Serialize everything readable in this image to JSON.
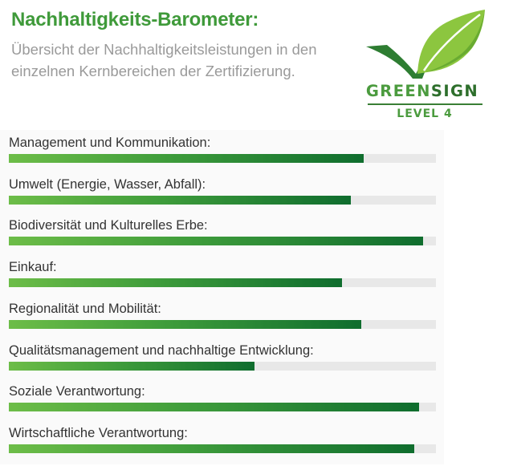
{
  "header": {
    "title": "Nachhaltigkeits-Barometer:",
    "subtitle": "Übersicht der Nachhaltigkeitsleistungen in den einzelnen Kernbereichen der Zertifizierung."
  },
  "logo": {
    "word_green": "GREEN",
    "word_sign": "SIGN",
    "level": "LEVEL 4",
    "colors": {
      "leaf_light": "#8cc63f",
      "leaf_dark": "#2e7d32",
      "text": "#4b9b3e"
    }
  },
  "chart_data": {
    "type": "bar",
    "orientation": "horizontal",
    "xlim": [
      0,
      100
    ],
    "unit": "percent",
    "categories": [
      "Management und Kommunikation:",
      "Umwelt (Energie, Wasser, Abfall):",
      "Biodiversität und Kulturelles Erbe:",
      "Einkauf:",
      "Regionalität und Mobilität:",
      "Qualitätsmanagement und nachhaltige Entwicklung:",
      "Soziale Verantwortung:",
      "Wirtschaftliche Verantwortung:"
    ],
    "values": [
      83,
      80,
      97,
      78,
      82.5,
      57.5,
      96,
      95
    ],
    "colors": {
      "fill_start": "#6dbd48",
      "fill_end": "#0f6d2e",
      "track": "#e8e8e8"
    }
  }
}
